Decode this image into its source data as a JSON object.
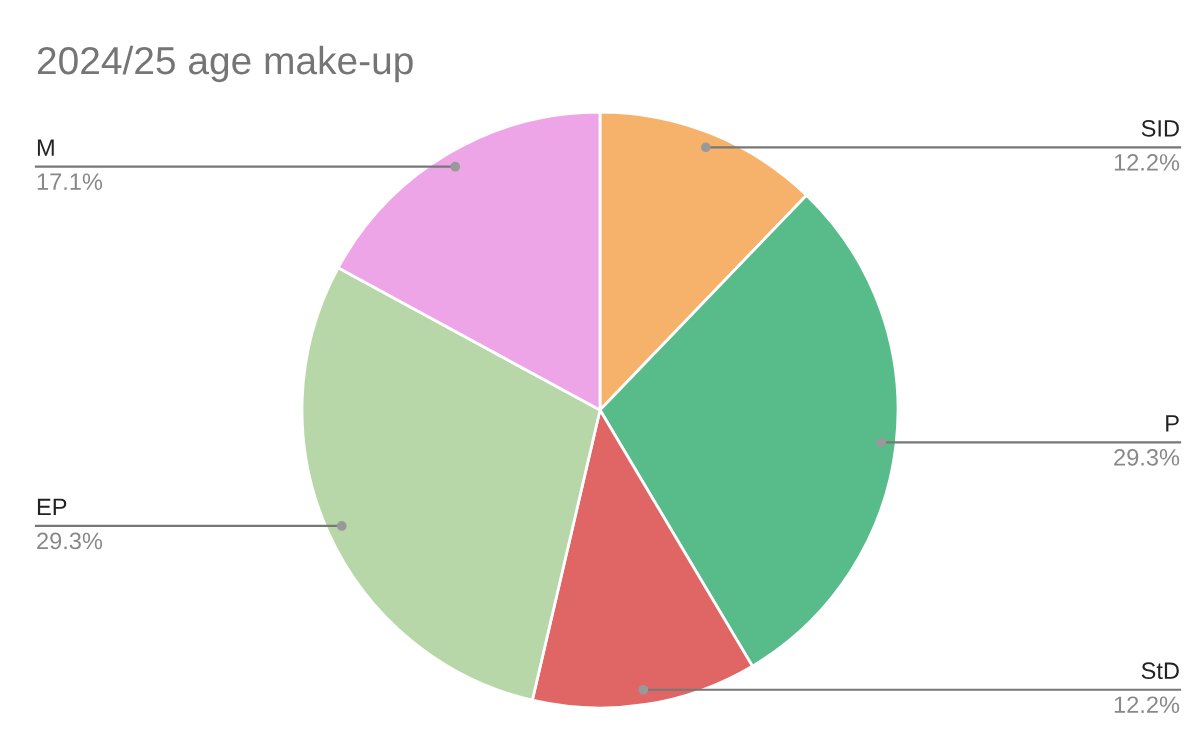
{
  "chart_data": {
    "type": "pie",
    "title": "2024/25 age make-up",
    "categories": [
      "SID",
      "P",
      "StD",
      "EP",
      "M"
    ],
    "values": [
      12.2,
      29.3,
      12.2,
      29.3,
      17.1
    ],
    "colors": [
      "#f6b26b",
      "#57bb8a",
      "#e06666",
      "#b7d7a8",
      "#eea5e8"
    ],
    "value_labels": [
      "12.2%",
      "29.3%",
      "12.2%",
      "29.3%",
      "17.1%"
    ],
    "legend": false
  }
}
